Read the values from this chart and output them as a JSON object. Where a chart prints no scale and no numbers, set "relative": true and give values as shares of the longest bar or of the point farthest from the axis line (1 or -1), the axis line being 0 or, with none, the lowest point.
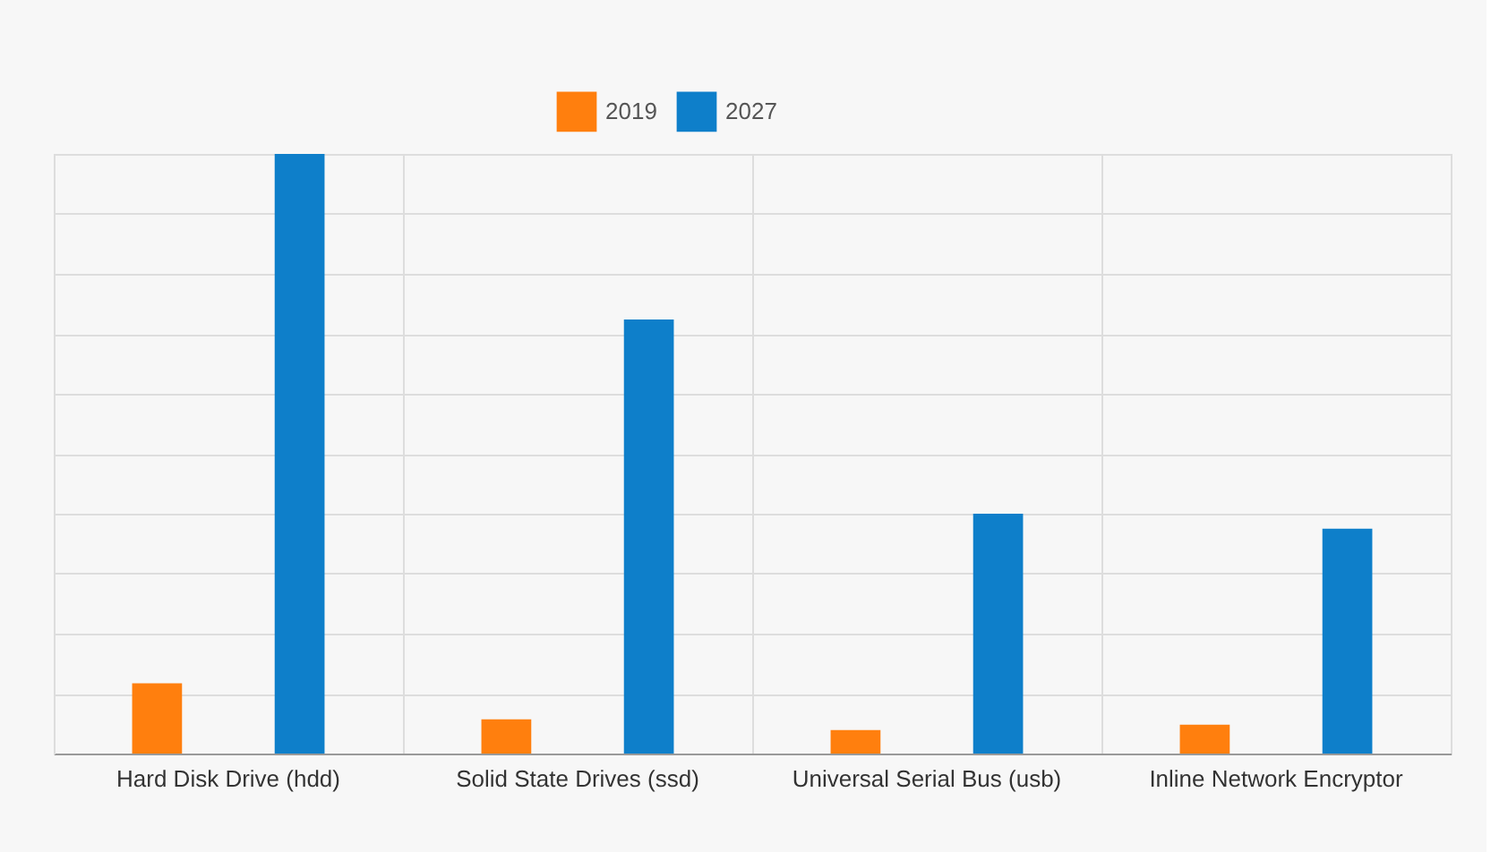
{
  "chart_data": {
    "type": "bar",
    "relative": true,
    "categories": [
      "Hard Disk Drive (hdd)",
      "Solid State Drives (ssd)",
      "Universal Serial Bus (usb)",
      "Inline Network Encryptor"
    ],
    "series": [
      {
        "name": "2019",
        "color": "#ff7f0e",
        "values": [
          0.117,
          0.057,
          0.039,
          0.048
        ]
      },
      {
        "name": "2027",
        "color": "#0e7fca",
        "values": [
          1,
          0.724,
          0.4,
          0.375
        ]
      }
    ],
    "grid": true,
    "legend": "top"
  }
}
